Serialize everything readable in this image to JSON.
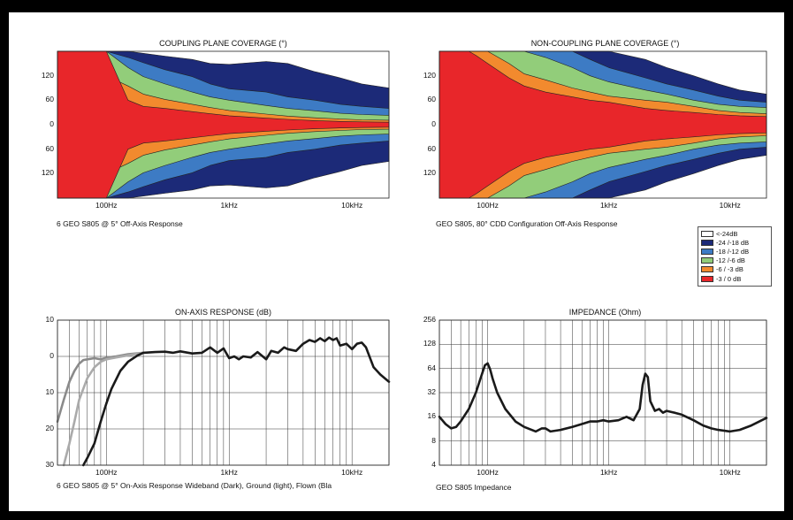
{
  "titles": {
    "coupling": "COUPLING PLANE COVERAGE (°)",
    "noncoupling": "NON-COUPLING PLANE COVERAGE (°)",
    "onaxis": "ON-AXIS RESPONSE (dB)",
    "impedance": "IMPEDANCE (Ohm)"
  },
  "captions": {
    "coupling": "6 GEO S805 @ 5°  Off-Axis Response",
    "noncoupling": "GEO S805, 80°  CDD Configuration Off-Axis Response",
    "onaxis": "6 GEO S805 @ 5°  On-Axis Response Wideband (Dark), Ground (light), Flown (Bla",
    "impedance": "GEO S805 Impedance"
  },
  "legend": [
    {
      "label": "<-24dB",
      "color": "#ffffff"
    },
    {
      "label": "-24 /-18 dB",
      "color": "#1c2a78"
    },
    {
      "label": "-18 /-12 dB",
      "color": "#3d7bc4"
    },
    {
      "label": "-12 /-6 dB",
      "color": "#92cd7a"
    },
    {
      "label": "-6 / -3 dB",
      "color": "#f28a2e"
    },
    {
      "label": "-3 / 0 dB",
      "color": "#e8262a"
    }
  ],
  "chart_data": [
    {
      "type": "heatmap",
      "id": "coupling",
      "title": "COUPLING PLANE COVERAGE (°)",
      "x_scale": "log",
      "xlim": [
        40,
        20000
      ],
      "x_ticks": [
        {
          "v": 100,
          "label": "100Hz"
        },
        {
          "v": 1000,
          "label": "1kHz"
        },
        {
          "v": 10000,
          "label": "10kHz"
        }
      ],
      "ylim": [
        -180,
        180
      ],
      "y_ticks": [
        {
          "v": 120,
          "label": "120"
        },
        {
          "v": 60,
          "label": "60"
        },
        {
          "v": 0,
          "label": "0"
        },
        {
          "v": -60,
          "label": "60"
        },
        {
          "v": -120,
          "label": "120"
        }
      ],
      "contours": [
        {
          "level": "-3 / 0 dB",
          "x": [
            40,
            60,
            80,
            100,
            150,
            200,
            300,
            500,
            700,
            1000,
            2000,
            3000,
            5000,
            8000,
            12000,
            20000
          ],
          "half_angle": [
            180,
            180,
            180,
            180,
            60,
            45,
            40,
            32,
            27,
            22,
            16,
            13,
            10,
            8,
            7,
            6
          ]
        },
        {
          "level": "-6 / -3 dB",
          "x": [
            40,
            60,
            80,
            100,
            150,
            200,
            300,
            500,
            700,
            1000,
            2000,
            3000,
            5000,
            8000,
            12000,
            20000
          ],
          "half_angle": [
            180,
            180,
            180,
            120,
            95,
            75,
            62,
            50,
            42,
            35,
            26,
            21,
            17,
            14,
            12,
            11
          ]
        },
        {
          "level": "-12 /-6 dB",
          "x": [
            40,
            60,
            80,
            100,
            150,
            200,
            300,
            500,
            700,
            1000,
            2000,
            3000,
            5000,
            8000,
            12000,
            20000
          ],
          "half_angle": [
            180,
            180,
            180,
            180,
            140,
            118,
            100,
            80,
            68,
            60,
            47,
            40,
            34,
            28,
            25,
            23
          ]
        },
        {
          "level": "-18 /-12 dB",
          "x": [
            40,
            60,
            80,
            100,
            150,
            200,
            300,
            500,
            700,
            1000,
            2000,
            3000,
            5000,
            8000,
            12000,
            20000
          ],
          "half_angle": [
            180,
            180,
            180,
            180,
            165,
            152,
            135,
            118,
            100,
            88,
            80,
            68,
            60,
            50,
            45,
            40
          ]
        },
        {
          "level": "-24 /-18 dB",
          "x": [
            40,
            60,
            80,
            100,
            150,
            200,
            300,
            500,
            700,
            1000,
            2000,
            3000,
            5000,
            8000,
            12000,
            20000
          ],
          "half_angle": [
            180,
            180,
            180,
            180,
            180,
            175,
            168,
            160,
            150,
            148,
            155,
            150,
            130,
            115,
            100,
            90
          ]
        }
      ]
    },
    {
      "type": "heatmap",
      "id": "noncoupling",
      "title": "NON-COUPLING PLANE COVERAGE (°)",
      "x_scale": "log",
      "xlim": [
        40,
        20000
      ],
      "x_ticks": [
        {
          "v": 100,
          "label": "100Hz"
        },
        {
          "v": 1000,
          "label": "1kHz"
        },
        {
          "v": 10000,
          "label": "10kHz"
        }
      ],
      "ylim": [
        -180,
        180
      ],
      "y_ticks": [
        {
          "v": 120,
          "label": "120"
        },
        {
          "v": 60,
          "label": "60"
        },
        {
          "v": 0,
          "label": "0"
        },
        {
          "v": -60,
          "label": "60"
        },
        {
          "v": -120,
          "label": "120"
        }
      ],
      "contours": [
        {
          "level": "-3 / 0 dB",
          "x": [
            40,
            60,
            70,
            80,
            100,
            150,
            200,
            300,
            500,
            700,
            1000,
            2000,
            3000,
            5000,
            8000,
            12000,
            20000
          ],
          "half_angle": [
            180,
            180,
            180,
            170,
            150,
            115,
            95,
            80,
            68,
            60,
            55,
            40,
            35,
            30,
            25,
            22,
            20
          ]
        },
        {
          "level": "-6 / -3 dB",
          "x": [
            40,
            60,
            70,
            80,
            100,
            150,
            200,
            300,
            500,
            700,
            1000,
            2000,
            3000,
            5000,
            8000,
            12000,
            20000
          ],
          "half_angle": [
            180,
            180,
            180,
            180,
            180,
            150,
            125,
            110,
            90,
            80,
            70,
            60,
            55,
            45,
            35,
            30,
            27
          ]
        },
        {
          "level": "-12 /-6 dB",
          "x": [
            40,
            60,
            70,
            80,
            100,
            150,
            200,
            300,
            500,
            700,
            1000,
            2000,
            3000,
            5000,
            8000,
            12000,
            20000
          ],
          "half_angle": [
            180,
            180,
            180,
            180,
            180,
            180,
            180,
            165,
            140,
            120,
            105,
            85,
            75,
            60,
            50,
            45,
            42
          ]
        },
        {
          "level": "-18 /-12 dB",
          "x": [
            40,
            60,
            70,
            80,
            100,
            150,
            200,
            300,
            500,
            700,
            1000,
            2000,
            3000,
            5000,
            8000,
            12000,
            20000
          ],
          "half_angle": [
            180,
            180,
            180,
            180,
            180,
            180,
            180,
            180,
            180,
            160,
            140,
            115,
            100,
            85,
            70,
            60,
            55
          ]
        },
        {
          "level": "-24 /-18 dB",
          "x": [
            40,
            60,
            70,
            80,
            100,
            150,
            200,
            300,
            500,
            700,
            1000,
            2000,
            3000,
            5000,
            8000,
            12000,
            20000
          ],
          "half_angle": [
            180,
            180,
            180,
            180,
            180,
            180,
            180,
            180,
            180,
            180,
            180,
            160,
            140,
            120,
            100,
            85,
            75
          ]
        }
      ]
    },
    {
      "type": "line",
      "id": "onaxis",
      "title": "ON-AXIS RESPONSE (dB)",
      "x_scale": "log",
      "xlim": [
        40,
        20000
      ],
      "x_ticks": [
        {
          "v": 100,
          "label": "100Hz"
        },
        {
          "v": 1000,
          "label": "1kHz"
        },
        {
          "v": 10000,
          "label": "10kHz"
        }
      ],
      "ylim": [
        -30,
        10
      ],
      "y_ticks": [
        {
          "v": 10,
          "label": "10"
        },
        {
          "v": 0,
          "label": "0"
        },
        {
          "v": -10,
          "label": "10"
        },
        {
          "v": -20,
          "label": "20"
        },
        {
          "v": -30,
          "label": "30"
        }
      ],
      "series": [
        {
          "color": "#8a8a8a",
          "x": [
            40,
            45,
            50,
            55,
            60,
            65,
            70,
            80,
            90,
            100,
            120,
            150,
            200
          ],
          "y": [
            -18,
            -12,
            -7,
            -4,
            -2,
            -1,
            -0.8,
            -0.5,
            -0.8,
            -0.4,
            0,
            0.6,
            1
          ]
        },
        {
          "color": "#aaaaaa",
          "x": [
            45,
            50,
            55,
            60,
            70,
            80,
            90,
            100,
            120,
            150,
            200
          ],
          "y": [
            -30,
            -24,
            -18,
            -12,
            -6,
            -3,
            -1.5,
            -0.8,
            -0.3,
            0.3,
            1
          ]
        },
        {
          "color": "#1a1a1a",
          "x": [
            65,
            70,
            80,
            90,
            100,
            110,
            130,
            150,
            180,
            200,
            250,
            300,
            350,
            400,
            500,
            600,
            700,
            800,
            900,
            1000,
            1100,
            1200,
            1300,
            1500,
            1700,
            2000,
            2200,
            2500,
            2800,
            3000,
            3500,
            4000,
            4500,
            5000,
            5500,
            6000,
            6500,
            7000,
            7500,
            8000,
            9000,
            10000,
            11000,
            12000,
            13000,
            15000,
            17000,
            20000
          ],
          "y": [
            -30,
            -28,
            -24,
            -18,
            -13,
            -9,
            -4,
            -1.5,
            0.3,
            1,
            1.2,
            1.3,
            1,
            1.4,
            0.8,
            1,
            2.5,
            1,
            2.2,
            -0.5,
            0,
            -0.8,
            0,
            -0.3,
            1.2,
            -0.8,
            1.5,
            1,
            2.5,
            2,
            1.5,
            3.5,
            4.5,
            4,
            5,
            4.2,
            5.2,
            4.5,
            5,
            3,
            3.5,
            2,
            3.5,
            3.8,
            2.5,
            -3,
            -5,
            -7
          ]
        }
      ]
    },
    {
      "type": "line",
      "id": "impedance",
      "title": "IMPEDANCE (Ohm)",
      "x_scale": "log",
      "y_scale": "log",
      "xlim": [
        40,
        20000
      ],
      "x_ticks": [
        {
          "v": 100,
          "label": "100Hz"
        },
        {
          "v": 1000,
          "label": "1kHz"
        },
        {
          "v": 10000,
          "label": "10kHz"
        }
      ],
      "ylim": [
        4,
        256
      ],
      "y_ticks": [
        {
          "v": 256,
          "label": "256"
        },
        {
          "v": 128,
          "label": "128"
        },
        {
          "v": 64,
          "label": "64"
        },
        {
          "v": 32,
          "label": "32"
        },
        {
          "v": 16,
          "label": "16"
        },
        {
          "v": 8,
          "label": "8"
        },
        {
          "v": 4,
          "label": "4"
        }
      ],
      "series": [
        {
          "color": "#1a1a1a",
          "x": [
            40,
            45,
            50,
            55,
            60,
            70,
            80,
            90,
            95,
            100,
            105,
            110,
            120,
            140,
            170,
            200,
            250,
            280,
            300,
            330,
            400,
            500,
            600,
            700,
            800,
            900,
            1000,
            1200,
            1400,
            1600,
            1800,
            1900,
            2000,
            2100,
            2200,
            2400,
            2600,
            2800,
            3000,
            3500,
            4000,
            5000,
            6000,
            7000,
            8000,
            10000,
            12000,
            15000,
            20000
          ],
          "y": [
            16,
            13,
            11.5,
            12,
            14,
            20,
            32,
            55,
            70,
            74,
            62,
            48,
            32,
            20,
            14,
            12,
            10.5,
            11.5,
            11.5,
            10.5,
            11,
            12,
            13,
            14,
            14,
            14.5,
            14,
            14.5,
            16,
            14.5,
            20,
            40,
            55,
            50,
            25,
            19,
            20,
            18,
            19,
            18,
            17,
            14.5,
            12.5,
            11.5,
            11,
            10.5,
            11,
            12.5,
            15.5
          ]
        }
      ]
    }
  ]
}
